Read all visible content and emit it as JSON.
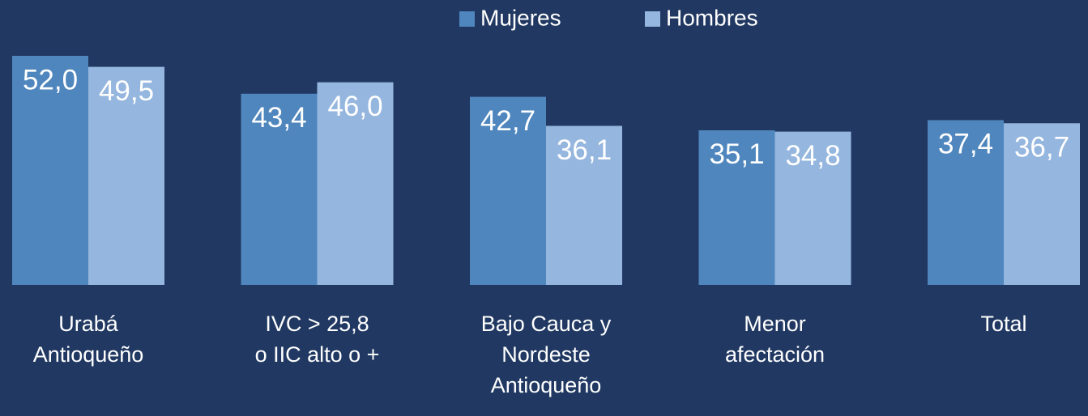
{
  "chart_data": {
    "type": "bar",
    "categories": [
      "Urabá\nAntioqueño",
      "IVC > 25,8\no IIC alto o +",
      "Bajo Cauca y\nNordeste\nAntioqueño",
      "Menor\nafectación",
      "Total"
    ],
    "series": [
      {
        "name": "Mujeres",
        "color": "#4f86bd",
        "values": [
          52.0,
          43.4,
          42.7,
          35.1,
          37.4
        ],
        "value_labels": [
          "52,0",
          "43,4",
          "42,7",
          "35,1",
          "37,4"
        ]
      },
      {
        "name": "Hombres",
        "color": "#95b6de",
        "values": [
          49.5,
          46.0,
          36.1,
          34.8,
          36.7
        ],
        "value_labels": [
          "49,5",
          "46,0",
          "36,1",
          "34,8",
          "36,7"
        ]
      }
    ],
    "legend": "top"
  }
}
